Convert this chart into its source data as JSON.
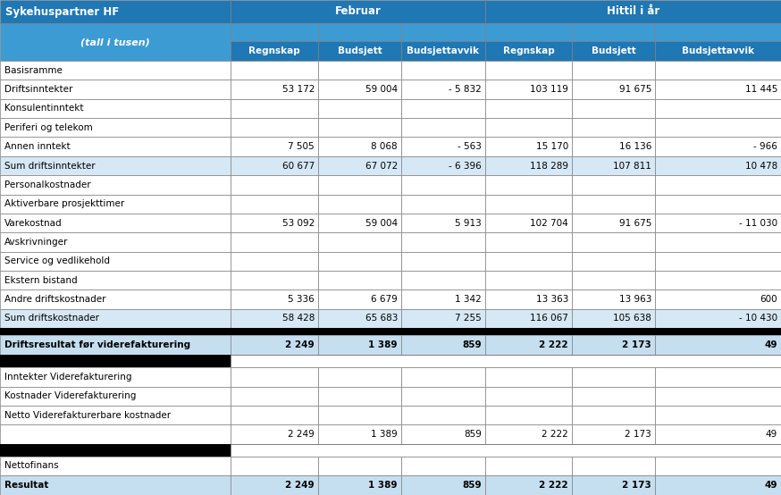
{
  "title_left": "Sykehuspartner HF",
  "col_group1": "Februar",
  "col_group2": "Hittil i år",
  "subheader_left": "(tall i tusen)",
  "col_headers": [
    "Regnskap",
    "Budsjett",
    "Budsjettavvik",
    "Regnskap",
    "Budsjett",
    "Budsjettavvik"
  ],
  "rows": [
    {
      "label": "Basisramme",
      "values": [
        "",
        "",
        "",
        "",
        "",
        ""
      ],
      "style": "normal"
    },
    {
      "label": "Driftsinntekter",
      "values": [
        "53 172",
        "59 004",
        "- 5 832",
        "103 119",
        "91 675",
        "11 445"
      ],
      "style": "normal"
    },
    {
      "label": "Konsulentinntekt",
      "values": [
        "",
        "",
        "",
        "",
        "",
        ""
      ],
      "style": "normal"
    },
    {
      "label": "Periferi og telekom",
      "values": [
        "",
        "",
        "",
        "",
        "",
        ""
      ],
      "style": "normal"
    },
    {
      "label": "Annen inntekt",
      "values": [
        "7 505",
        "8 068",
        "- 563",
        "15 170",
        "16 136",
        "- 966"
      ],
      "style": "normal"
    },
    {
      "label": "Sum driftsinntekter",
      "values": [
        "60 677",
        "67 072",
        "- 6 396",
        "118 289",
        "107 811",
        "10 478"
      ],
      "style": "sum"
    },
    {
      "label": "Personalkostnader",
      "values": [
        "",
        "",
        "",
        "",
        "",
        ""
      ],
      "style": "normal"
    },
    {
      "label": "Aktiverbare prosjekttimer",
      "values": [
        "",
        "",
        "",
        "",
        "",
        ""
      ],
      "style": "normal"
    },
    {
      "label": "Varekostnad",
      "values": [
        "53 092",
        "59 004",
        "5 913",
        "102 704",
        "91 675",
        "- 11 030"
      ],
      "style": "normal"
    },
    {
      "label": "Avskrivninger",
      "values": [
        "",
        "",
        "",
        "",
        "",
        ""
      ],
      "style": "normal"
    },
    {
      "label": "Service og vedlikehold",
      "values": [
        "",
        "",
        "",
        "",
        "",
        ""
      ],
      "style": "normal"
    },
    {
      "label": "Ekstern bistand",
      "values": [
        "",
        "",
        "",
        "",
        "",
        ""
      ],
      "style": "normal"
    },
    {
      "label": "Andre driftskostnader",
      "values": [
        "5 336",
        "6 679",
        "1 342",
        "13 363",
        "13 963",
        "600"
      ],
      "style": "normal"
    },
    {
      "label": "Sum driftskostnader",
      "values": [
        "58 428",
        "65 683",
        "7 255",
        "116 067",
        "105 638",
        "- 10 430"
      ],
      "style": "sum"
    },
    {
      "label": "",
      "values": [
        "",
        "",
        "",
        "",
        "",
        ""
      ],
      "style": "black_sep"
    },
    {
      "label": "Driftsresultat før viderefakturering",
      "values": [
        "2 249",
        "1 389",
        "859",
        "2 222",
        "2 173",
        "49"
      ],
      "style": "bold_blue"
    },
    {
      "label": "",
      "values": [
        "",
        "",
        "",
        "",
        "",
        ""
      ],
      "style": "black_sep_half"
    },
    {
      "label": "Inntekter Viderefakturering",
      "values": [
        "",
        "",
        "",
        "",
        "",
        ""
      ],
      "style": "normal"
    },
    {
      "label": "Kostnader Viderefakturering",
      "values": [
        "",
        "",
        "",
        "",
        "",
        ""
      ],
      "style": "normal"
    },
    {
      "label": "Netto Viderefakturerbare kostnader",
      "values": [
        "",
        "",
        "",
        "",
        "",
        ""
      ],
      "style": "normal"
    },
    {
      "label": "",
      "values": [
        "2 249",
        "1 389",
        "859",
        "2 222",
        "2 173",
        "49"
      ],
      "style": "normal_values"
    },
    {
      "label": "",
      "values": [
        "",
        "",
        "",
        "",
        "",
        ""
      ],
      "style": "black_sep_half"
    },
    {
      "label": "Nettofinans",
      "values": [
        "",
        "",
        "",
        "",
        "",
        ""
      ],
      "style": "normal"
    },
    {
      "label": "Resultat",
      "values": [
        "2 249",
        "1 389",
        "859",
        "2 222",
        "2 173",
        "49"
      ],
      "style": "bold_blue"
    }
  ],
  "header_bg": "#1F77B4",
  "header_text": "#FFFFFF",
  "subheader_bg": "#3D9BD4",
  "col_header_bg": "#1F77B4",
  "col_header_text": "#FFFFFF",
  "sum_bg": "#D6E8F5",
  "bold_blue_bg": "#C5DFF0",
  "normal_bg": "#FFFFFF",
  "black_sep_bg": "#000000",
  "grid_color": "#808080",
  "text_color": "#000000",
  "fig_width": 8.74,
  "fig_height": 5.54,
  "dpi": 100
}
